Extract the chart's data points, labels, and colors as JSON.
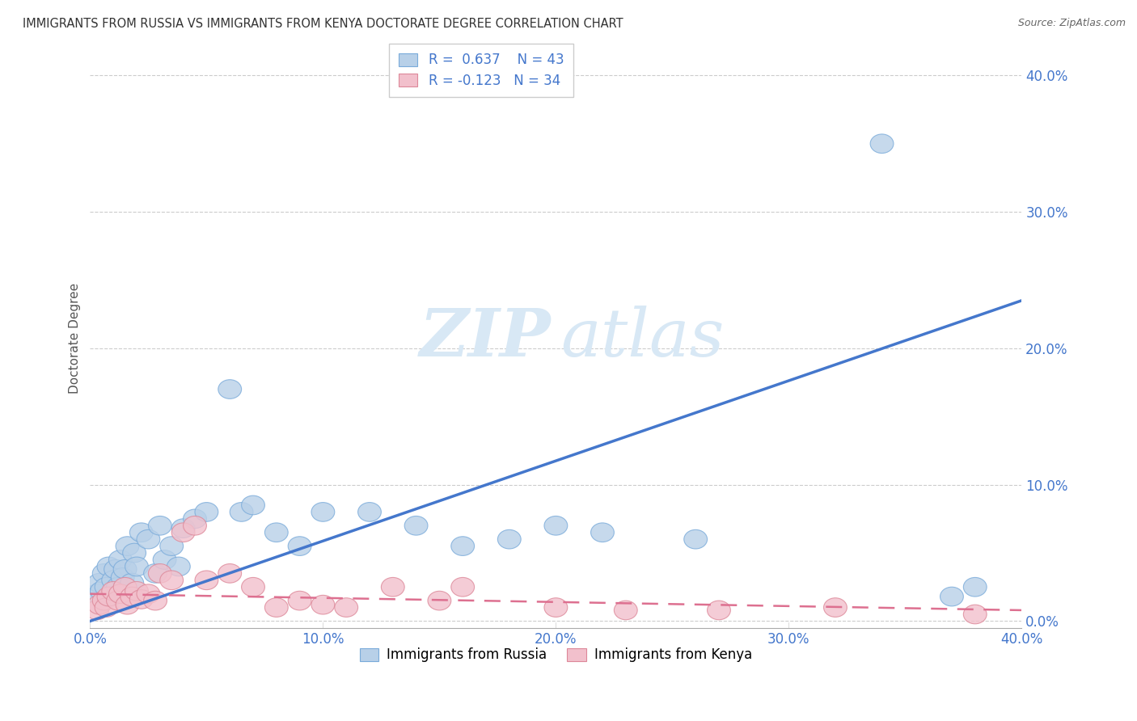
{
  "title": "IMMIGRANTS FROM RUSSIA VS IMMIGRANTS FROM KENYA DOCTORATE DEGREE CORRELATION CHART",
  "source": "Source: ZipAtlas.com",
  "ylabel": "Doctorate Degree",
  "xlim": [
    0.0,
    0.4
  ],
  "ylim": [
    -0.005,
    0.42
  ],
  "x_ticks": [
    0.0,
    0.1,
    0.2,
    0.3,
    0.4
  ],
  "x_tick_labels": [
    "0.0%",
    "10.0%",
    "20.0%",
    "30.0%",
    "40.0%"
  ],
  "y_ticks": [
    0.0,
    0.1,
    0.2,
    0.3,
    0.4
  ],
  "y_tick_labels": [
    "0.0%",
    "10.0%",
    "20.0%",
    "30.0%",
    "40.0%"
  ],
  "russia_R": 0.637,
  "russia_N": 43,
  "kenya_R": -0.123,
  "kenya_N": 34,
  "russia_color": "#b8d0e8",
  "russia_edge_color": "#7aabda",
  "russia_line_color": "#4477cc",
  "kenya_color": "#f2c0cc",
  "kenya_edge_color": "#dd8899",
  "kenya_line_color": "#dd7090",
  "tick_color": "#4477cc",
  "russia_line_x0": 0.0,
  "russia_line_y0": 0.0,
  "russia_line_x1": 0.4,
  "russia_line_y1": 0.235,
  "kenya_line_x0": 0.0,
  "kenya_line_y0": 0.02,
  "kenya_line_x1": 0.4,
  "kenya_line_y1": 0.008,
  "russia_points_x": [
    0.003,
    0.004,
    0.005,
    0.006,
    0.007,
    0.008,
    0.009,
    0.01,
    0.011,
    0.012,
    0.013,
    0.014,
    0.015,
    0.016,
    0.018,
    0.019,
    0.02,
    0.022,
    0.025,
    0.028,
    0.03,
    0.032,
    0.035,
    0.038,
    0.04,
    0.045,
    0.05,
    0.06,
    0.065,
    0.07,
    0.08,
    0.09,
    0.1,
    0.12,
    0.14,
    0.16,
    0.18,
    0.2,
    0.22,
    0.26,
    0.34,
    0.37,
    0.38
  ],
  "russia_points_y": [
    0.02,
    0.028,
    0.022,
    0.035,
    0.025,
    0.04,
    0.018,
    0.03,
    0.038,
    0.025,
    0.045,
    0.032,
    0.038,
    0.055,
    0.028,
    0.05,
    0.04,
    0.065,
    0.06,
    0.035,
    0.07,
    0.045,
    0.055,
    0.04,
    0.068,
    0.075,
    0.08,
    0.17,
    0.08,
    0.085,
    0.065,
    0.055,
    0.08,
    0.08,
    0.07,
    0.055,
    0.06,
    0.07,
    0.065,
    0.06,
    0.35,
    0.018,
    0.025
  ],
  "kenya_points_x": [
    0.003,
    0.004,
    0.006,
    0.007,
    0.008,
    0.01,
    0.012,
    0.013,
    0.015,
    0.016,
    0.018,
    0.02,
    0.022,
    0.025,
    0.028,
    0.03,
    0.035,
    0.04,
    0.045,
    0.05,
    0.06,
    0.07,
    0.08,
    0.09,
    0.1,
    0.11,
    0.13,
    0.15,
    0.16,
    0.2,
    0.23,
    0.27,
    0.32,
    0.38
  ],
  "kenya_points_y": [
    0.008,
    0.012,
    0.015,
    0.01,
    0.018,
    0.022,
    0.015,
    0.02,
    0.025,
    0.012,
    0.018,
    0.022,
    0.016,
    0.02,
    0.015,
    0.035,
    0.03,
    0.065,
    0.07,
    0.03,
    0.035,
    0.025,
    0.01,
    0.015,
    0.012,
    0.01,
    0.025,
    0.015,
    0.025,
    0.01,
    0.008,
    0.008,
    0.01,
    0.005
  ]
}
